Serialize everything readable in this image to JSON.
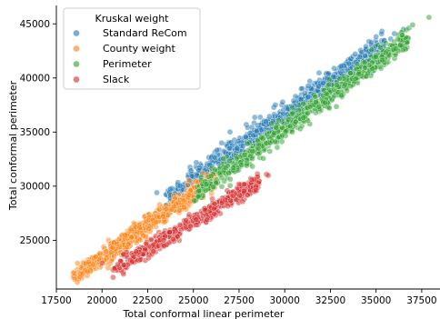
{
  "chart_data": {
    "type": "scatter",
    "title": "",
    "xlabel": "Total conformal linear perimeter",
    "ylabel": "Total conformal perimeter",
    "xlim": [
      17500,
      38500
    ],
    "ylim": [
      20500,
      46700
    ],
    "xticks": [
      17500,
      20000,
      22500,
      25000,
      27500,
      30000,
      32500,
      35000,
      37500
    ],
    "xtick_labels": [
      "17500",
      "20000",
      "22500",
      "25000",
      "27500",
      "30000",
      "32500",
      "35000",
      "37500"
    ],
    "yticks": [
      25000,
      30000,
      35000,
      40000,
      45000
    ],
    "ytick_labels": [
      "25000",
      "30000",
      "35000",
      "40000",
      "45000"
    ],
    "grid": false,
    "legend": {
      "title": "Kruskal weight",
      "placement": "top-left"
    },
    "series": [
      {
        "name": "Standard ReCom",
        "color": "#1f77b4",
        "band": {
          "x_start": 23500,
          "x_end": 35500,
          "y_start": 29000,
          "y_end": 43200,
          "spread": 550
        },
        "count": 700,
        "extra_points": [
          [
            36500,
            44500
          ],
          [
            35000,
            43800
          ],
          [
            36000,
            44100
          ],
          [
            23000,
            29400
          ],
          [
            25200,
            31000
          ],
          [
            24800,
            30500
          ],
          [
            26500,
            32500
          ],
          [
            27000,
            33500
          ],
          [
            35800,
            43600
          ]
        ]
      },
      {
        "name": "County weight",
        "color": "#ff7f0e",
        "band": {
          "x_start": 18400,
          "x_end": 26200,
          "y_start": 21500,
          "y_end": 30800,
          "spread": 420
        },
        "count": 700,
        "extra_points": [
          [
            18500,
            21400
          ],
          [
            18800,
            21600
          ],
          [
            19200,
            22100
          ],
          [
            25500,
            31200
          ]
        ]
      },
      {
        "name": "Perimeter",
        "color": "#2ca02c",
        "band": {
          "x_start": 25000,
          "x_end": 36800,
          "y_start": 29200,
          "y_end": 43700,
          "spread": 500
        },
        "count": 700,
        "extra_points": [
          [
            37900,
            45600
          ],
          [
            36800,
            44600
          ],
          [
            37000,
            44900
          ],
          [
            27800,
            32900
          ],
          [
            27200,
            31700
          ],
          [
            29200,
            34000
          ]
        ]
      },
      {
        "name": "Slack",
        "color": "#d62728",
        "band": {
          "x_start": 20600,
          "x_end": 28600,
          "y_start": 22300,
          "y_end": 30400,
          "spread": 380
        },
        "count": 500,
        "extra_points": [
          [
            20000,
            22900
          ],
          [
            29000,
            31100
          ],
          [
            29100,
            31000
          ],
          [
            28200,
            30600
          ],
          [
            27500,
            30200
          ]
        ]
      }
    ]
  }
}
